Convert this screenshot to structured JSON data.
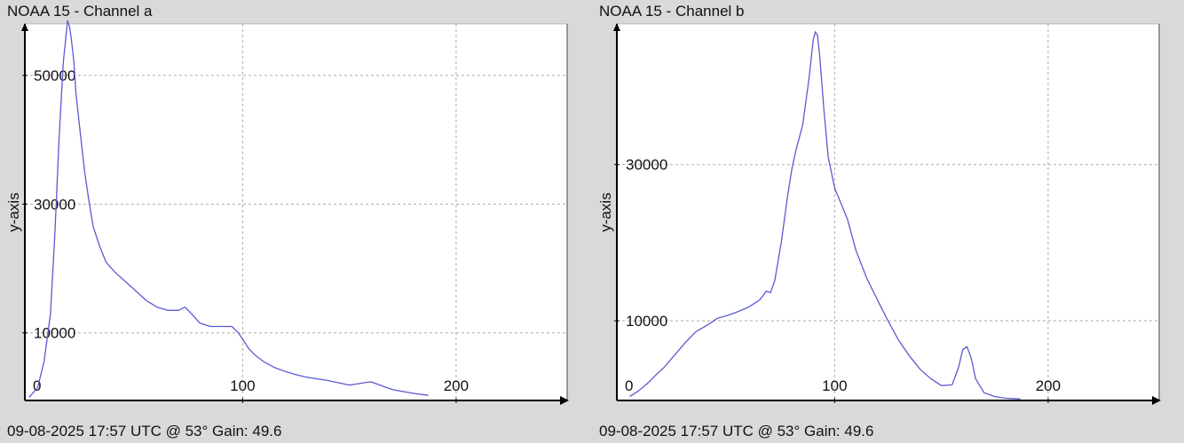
{
  "chart_data": [
    {
      "type": "line",
      "title": "NOAA 15 - Channel a",
      "ylabel": "y-axis",
      "xlabel": "",
      "footer": "09-08-2025 17:57 UTC @ 53° Gain: 49.6",
      "grid": true,
      "xlim": [
        -2,
        252
      ],
      "ylim": [
        -500,
        58000
      ],
      "x_ticks": [
        0,
        100,
        200
      ],
      "x_tick_labels": [
        "0",
        "100",
        "200"
      ],
      "y_ticks": [
        10000,
        30000,
        50000
      ],
      "y_tick_labels": [
        "10000",
        "30000",
        "50000"
      ],
      "line_color": "#5a5ad2",
      "series": [
        {
          "x": [
            0,
            4,
            7,
            10,
            12,
            14,
            16,
            18,
            19,
            20,
            21,
            22,
            24,
            26,
            28,
            30,
            33,
            36,
            40,
            45,
            50,
            55,
            60,
            65,
            70,
            73,
            76,
            80,
            85,
            90,
            95,
            98,
            100,
            103,
            106,
            110,
            115,
            120,
            125,
            130,
            140,
            150,
            160,
            170,
            180,
            187
          ],
          "y": [
            0,
            1500,
            5500,
            13000,
            25000,
            40000,
            52000,
            58500,
            57500,
            55000,
            52000,
            47000,
            41000,
            35000,
            30500,
            26500,
            23500,
            21000,
            19500,
            18000,
            16500,
            15000,
            14000,
            13500,
            13500,
            14000,
            13000,
            11500,
            11000,
            11000,
            11000,
            10000,
            9000,
            7500,
            6500,
            5500,
            4600,
            4000,
            3500,
            3100,
            2600,
            1900,
            2400,
            1200,
            600,
            300
          ]
        }
      ]
    },
    {
      "type": "line",
      "title": "NOAA 15 - Channel b",
      "ylabel": "y-axis",
      "xlabel": "",
      "footer": "09-08-2025 17:57 UTC @ 53° Gain: 49.6",
      "grid": true,
      "xlim": [
        -2,
        252
      ],
      "ylim": [
        -200,
        48000
      ],
      "x_ticks": [
        0,
        100,
        200
      ],
      "x_tick_labels": [
        "0",
        "100",
        "200"
      ],
      "y_ticks": [
        10000,
        30000
      ],
      "y_tick_labels": [
        "10000",
        "30000"
      ],
      "line_color": "#5a5ad2",
      "series": [
        {
          "x": [
            4,
            8,
            12,
            16,
            20,
            25,
            30,
            35,
            40,
            45,
            50,
            55,
            60,
            65,
            68,
            70,
            72,
            75,
            78,
            80,
            82,
            85,
            88,
            90,
            91,
            92,
            93,
            95,
            97,
            100,
            103,
            106,
            110,
            115,
            120,
            125,
            130,
            135,
            140,
            145,
            150,
            155,
            158,
            160,
            162,
            164,
            166,
            170,
            175,
            180,
            187
          ],
          "y": [
            300,
            1000,
            1900,
            3000,
            4000,
            5600,
            7200,
            8600,
            9400,
            10300,
            10700,
            11200,
            11800,
            12700,
            13800,
            13600,
            15200,
            20000,
            26000,
            29500,
            32000,
            35000,
            41000,
            46000,
            47000,
            46500,
            44000,
            37000,
            31000,
            27000,
            25000,
            23000,
            19000,
            15500,
            12700,
            10000,
            7500,
            5500,
            3800,
            2600,
            1700,
            1800,
            4000,
            6300,
            6700,
            5200,
            2600,
            800,
            300,
            100,
            0
          ]
        }
      ]
    }
  ]
}
